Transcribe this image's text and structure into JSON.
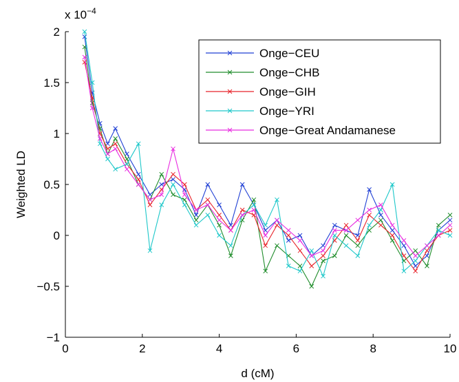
{
  "chart_data": {
    "type": "line",
    "title": "",
    "xlabel": "d (cM)",
    "ylabel": "Weighted LD",
    "y_multiplier_base": "x 10",
    "y_multiplier_exp": "−4",
    "xlim": [
      0,
      10
    ],
    "ylim": [
      -1,
      2
    ],
    "xticks": [
      0,
      2,
      4,
      6,
      8,
      10
    ],
    "xtick_labels": [
      "0",
      "2",
      "4",
      "6",
      "8",
      "10"
    ],
    "yticks": [
      -1,
      -0.5,
      0,
      0.5,
      1,
      1.5,
      2
    ],
    "ytick_labels": [
      "−1",
      "−0.5",
      "0",
      "0.5",
      "1",
      "1.5",
      "2"
    ],
    "grid": false,
    "legend_position": "top-right",
    "marker": "x",
    "x": [
      0.5,
      0.7,
      0.9,
      1.1,
      1.3,
      1.6,
      1.9,
      2.2,
      2.5,
      2.8,
      3.1,
      3.4,
      3.7,
      4.0,
      4.3,
      4.6,
      4.9,
      5.2,
      5.5,
      5.8,
      6.1,
      6.4,
      6.7,
      7.0,
      7.3,
      7.6,
      7.9,
      8.2,
      8.5,
      8.8,
      9.1,
      9.4,
      9.7,
      10.0
    ],
    "series": [
      {
        "name": "Onge−CEU",
        "color": "#1f3fd4",
        "values": [
          1.95,
          1.4,
          1.1,
          0.9,
          1.05,
          0.8,
          0.6,
          0.4,
          0.5,
          0.55,
          0.45,
          0.2,
          0.5,
          0.3,
          0.1,
          0.5,
          0.3,
          0.05,
          0.15,
          -0.05,
          0.0,
          -0.2,
          -0.1,
          0.1,
          0.05,
          0.0,
          0.45,
          0.2,
          0.05,
          -0.1,
          -0.3,
          -0.2,
          0.05,
          0.15
        ]
      },
      {
        "name": "Onge−CHB",
        "color": "#1e8c2a",
        "values": [
          1.85,
          1.3,
          1.05,
          0.8,
          0.95,
          0.75,
          0.5,
          0.35,
          0.6,
          0.4,
          0.35,
          0.15,
          0.3,
          0.1,
          -0.2,
          0.15,
          0.35,
          -0.35,
          -0.1,
          -0.2,
          -0.3,
          -0.5,
          -0.25,
          -0.2,
          0.0,
          -0.1,
          0.05,
          0.15,
          -0.05,
          -0.25,
          -0.15,
          -0.3,
          0.1,
          0.2
        ]
      },
      {
        "name": "Onge−GIH",
        "color": "#e8232a",
        "values": [
          1.7,
          1.35,
          1.0,
          0.85,
          0.9,
          0.7,
          0.55,
          0.3,
          0.45,
          0.6,
          0.5,
          0.25,
          0.35,
          0.2,
          0.05,
          0.25,
          0.2,
          -0.1,
          0.1,
          0.0,
          -0.15,
          -0.3,
          -0.2,
          -0.05,
          0.1,
          -0.05,
          0.2,
          0.1,
          0.0,
          -0.2,
          -0.35,
          -0.15,
          0.0,
          0.05
        ]
      },
      {
        "name": "Onge−YRI",
        "color": "#1cc7c9",
        "values": [
          2.0,
          1.5,
          0.9,
          0.75,
          0.65,
          0.7,
          0.9,
          -0.15,
          0.3,
          0.5,
          0.3,
          0.1,
          0.2,
          0.0,
          -0.1,
          0.2,
          0.3,
          0.1,
          0.35,
          -0.3,
          -0.35,
          -0.15,
          -0.4,
          0.0,
          -0.1,
          -0.2,
          0.1,
          0.25,
          0.5,
          -0.35,
          -0.25,
          -0.1,
          0.05,
          0.0
        ]
      },
      {
        "name": "Onge−Great Andamanese",
        "color": "#e82ae0",
        "values": [
          1.75,
          1.25,
          0.95,
          0.8,
          0.85,
          0.65,
          0.5,
          0.35,
          0.4,
          0.85,
          0.4,
          0.25,
          0.3,
          0.15,
          0.05,
          0.2,
          0.25,
          0.0,
          0.15,
          0.05,
          -0.05,
          -0.2,
          -0.15,
          0.05,
          0.05,
          0.15,
          0.25,
          0.3,
          0.1,
          -0.05,
          -0.2,
          -0.1,
          0.0,
          0.1
        ]
      }
    ]
  }
}
